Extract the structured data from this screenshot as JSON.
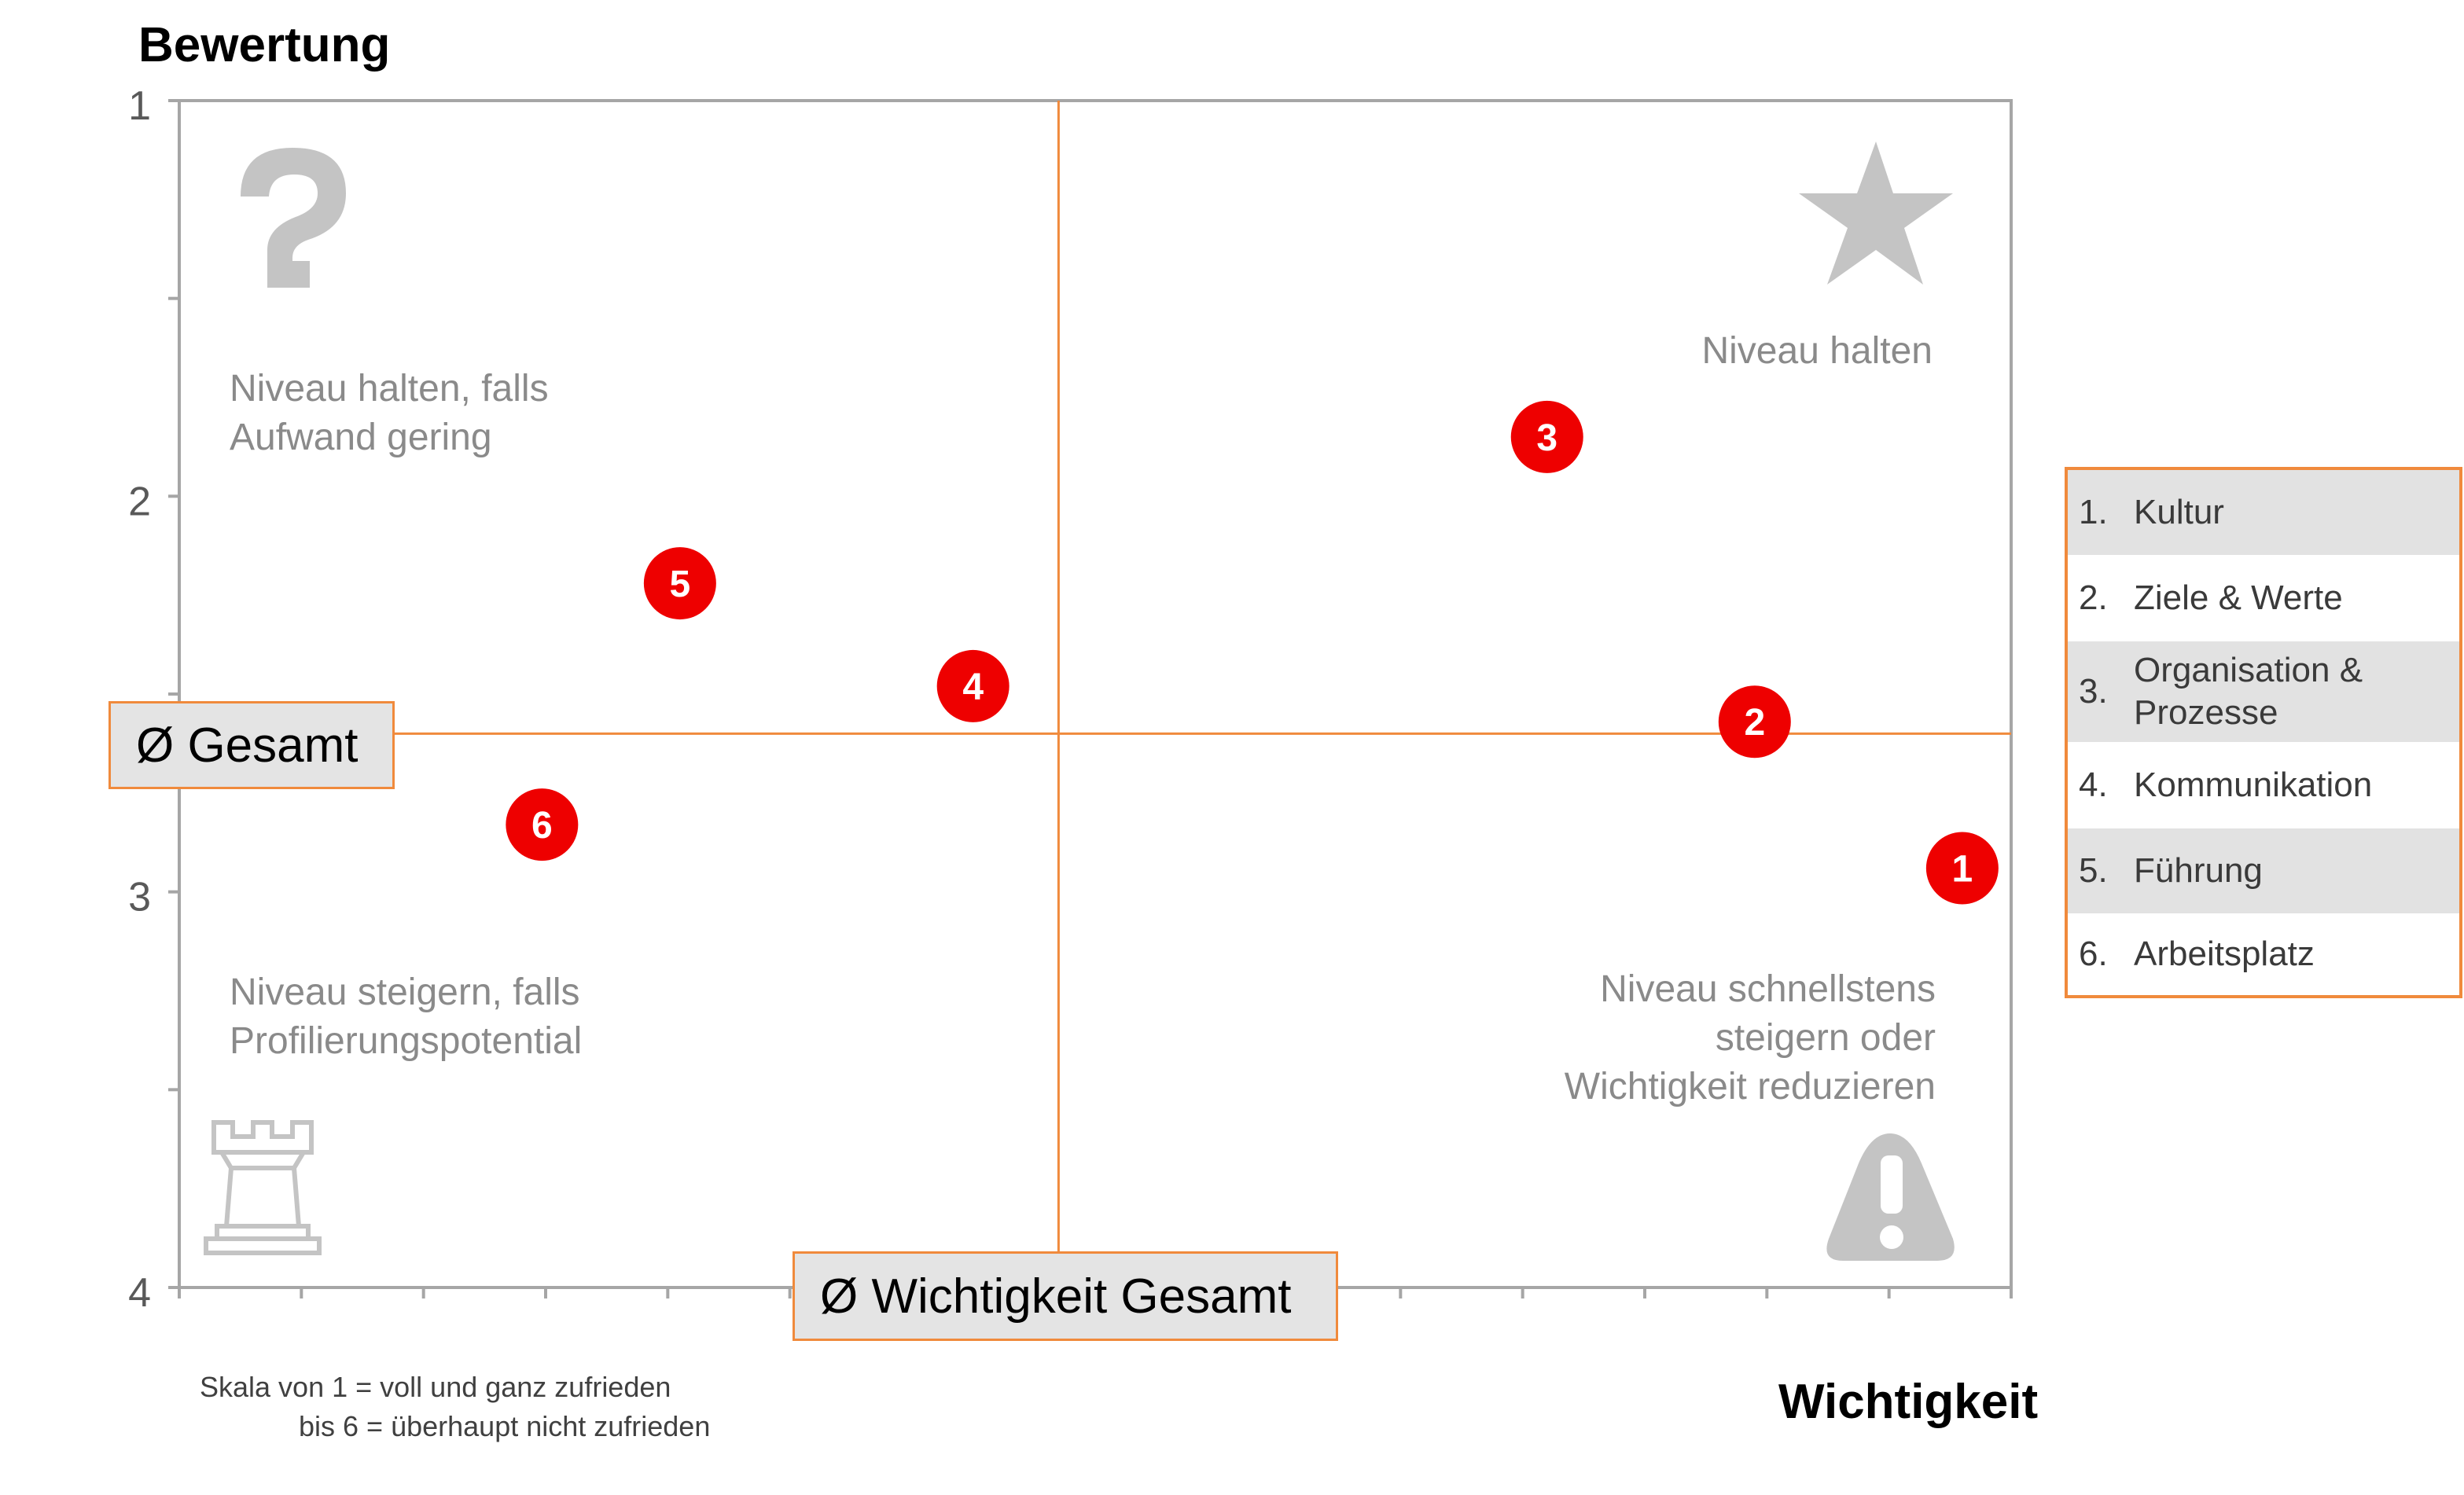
{
  "chart_data": {
    "type": "scatter",
    "xlabel": "Wichtigkeit",
    "ylabel": "Bewertung",
    "y_ticks": [
      "1",
      "2",
      "3",
      "4"
    ],
    "ylim": [
      1,
      4
    ],
    "y_inverted": true,
    "xlim": [
      0,
      15
    ],
    "grid": false,
    "avg_x": 7.2,
    "avg_y": 2.6,
    "avg_x_label": "Ø Wichtigkeit Gesamt",
    "avg_y_label": "Ø Gesamt",
    "points": [
      {
        "label": "1",
        "x": 14.6,
        "y": 2.94
      },
      {
        "label": "2",
        "x": 12.9,
        "y": 2.57
      },
      {
        "label": "3",
        "x": 11.2,
        "y": 1.85
      },
      {
        "label": "4",
        "x": 6.5,
        "y": 2.48
      },
      {
        "label": "5",
        "x": 4.1,
        "y": 2.22
      },
      {
        "label": "6",
        "x": 2.97,
        "y": 2.83
      }
    ],
    "point_color": "#ee0000",
    "line_color": "#f08a3c",
    "quadrants": {
      "top_left": [
        "Niveau halten, falls",
        "Aufwand gering"
      ],
      "top_right": [
        "Niveau halten"
      ],
      "bottom_left": [
        "Niveau steigern, falls",
        "Profilierungspotential"
      ],
      "bottom_right": [
        "Niveau schnellstens",
        "steigern oder",
        "Wichtigkeit reduzieren"
      ]
    },
    "quadrant_icons": {
      "top_left": "question-mark-icon",
      "top_right": "star-icon",
      "bottom_left": "chess-rook-icon",
      "bottom_right": "warning-icon"
    },
    "note": [
      "Skala von 1 = voll und ganz zufrieden",
      "bis 6 = überhaupt nicht zufrieden"
    ],
    "legend": [
      {
        "num": "1.",
        "label": "Kultur"
      },
      {
        "num": "2.",
        "label": "Ziele & Werte"
      },
      {
        "num": "3.",
        "label": "Organisation & Prozesse"
      },
      {
        "num": "4.",
        "label": "Kommunikation"
      },
      {
        "num": "5.",
        "label": "Führung"
      },
      {
        "num": "6.",
        "label": "Arbeitsplatz"
      }
    ]
  }
}
